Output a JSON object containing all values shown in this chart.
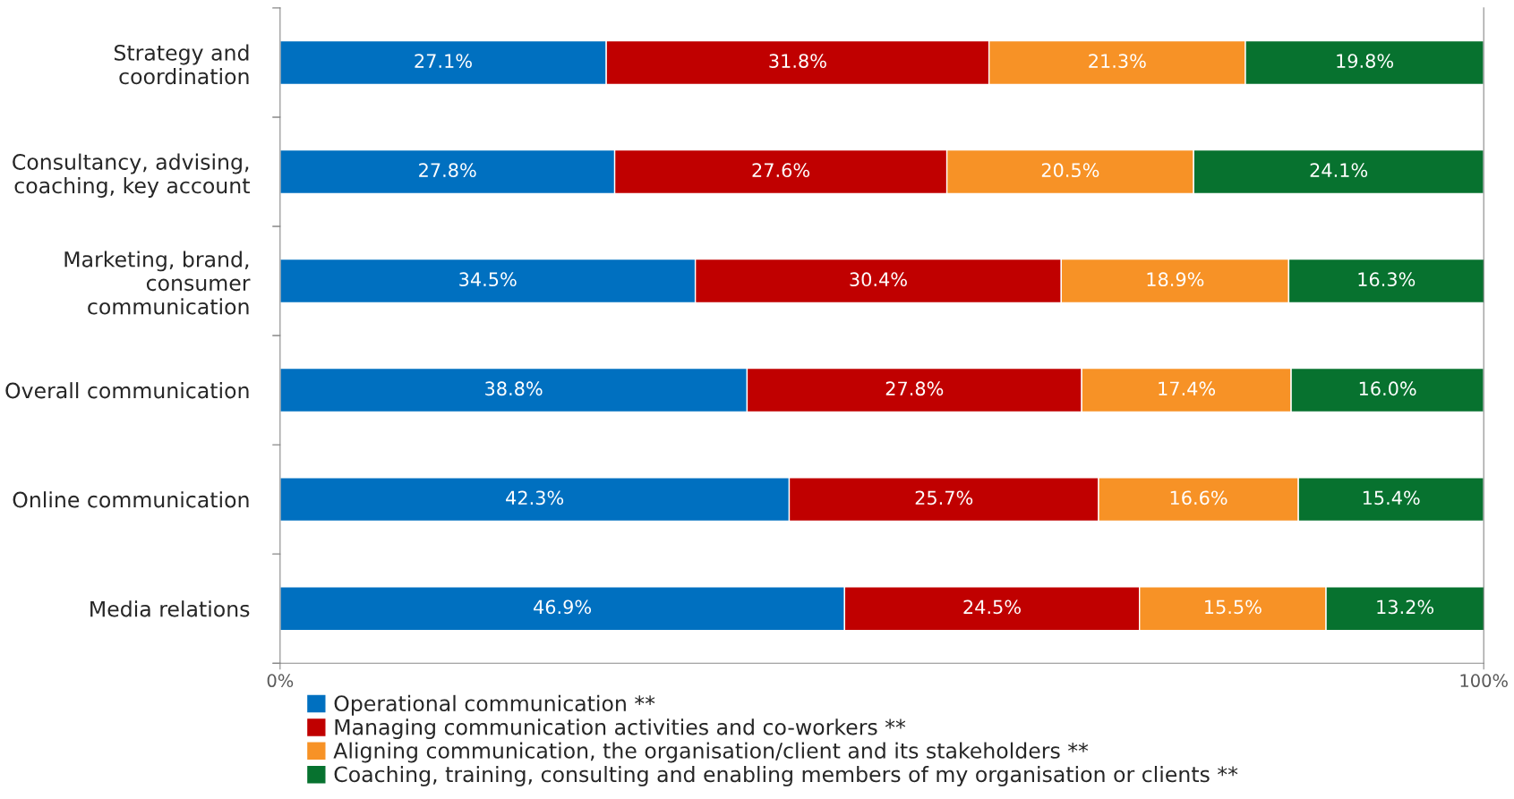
{
  "chart_data": {
    "type": "bar",
    "orientation": "horizontal",
    "stacked": true,
    "categories": [
      "Strategy and\ncoordination",
      "Consultancy, advising,\ncoaching, key account",
      "Marketing, brand,\nconsumer\ncommunication",
      "Overall communication",
      "Online communication",
      "Media relations"
    ],
    "series": [
      {
        "name": "Operational communication **",
        "color": "#0070c0",
        "values": [
          27.1,
          27.8,
          34.5,
          38.8,
          42.3,
          46.9
        ],
        "value_labels": [
          "27.1%",
          "27.8%",
          "34.5%",
          "38.8%",
          "42.3%",
          "46.9%"
        ]
      },
      {
        "name": "Managing communication activities and co-workers **",
        "color": "#c00000",
        "values": [
          31.8,
          27.6,
          30.4,
          27.8,
          25.7,
          24.5
        ],
        "value_labels": [
          "31.8%",
          "27.6%",
          "30.4%",
          "27.8%",
          "25.7%",
          "24.5%"
        ]
      },
      {
        "name": "Aligning communication, the organisation/client and its stakeholders **",
        "color": "#f79226",
        "values": [
          21.3,
          20.5,
          18.9,
          17.4,
          16.6,
          15.5
        ],
        "value_labels": [
          "21.3%",
          "20.5%",
          "18.9%",
          "17.4%",
          "16.6%",
          "15.5%"
        ]
      },
      {
        "name": "Coaching, training, consulting and enabling members of my organisation or clients **",
        "color": "#07722f",
        "values": [
          19.8,
          24.1,
          16.3,
          16.0,
          15.4,
          13.2
        ],
        "value_labels": [
          "19.8%",
          "24.1%",
          "16.3%",
          "16.0%",
          "15.4%",
          "13.2%"
        ]
      }
    ],
    "xlim": [
      0,
      100
    ],
    "xticks": [
      {
        "value": 0,
        "label": "0%"
      },
      {
        "value": 100,
        "label": "100%"
      }
    ],
    "grid": false,
    "legend": "bottom"
  }
}
